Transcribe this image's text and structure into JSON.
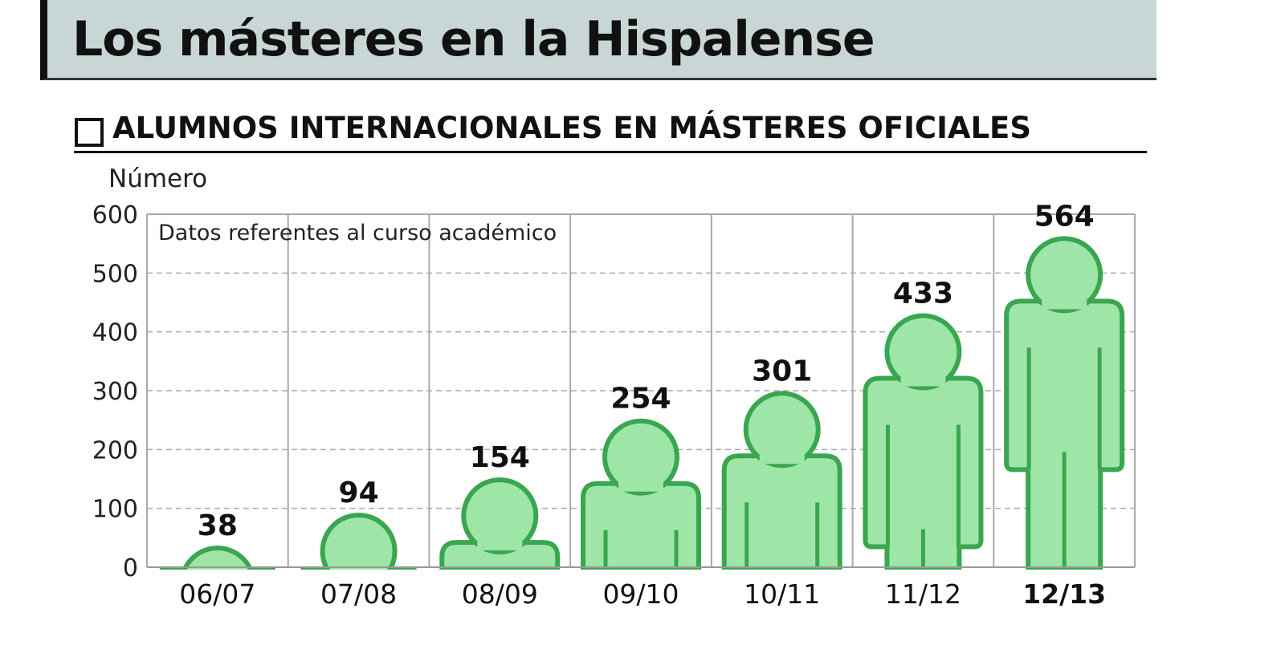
{
  "title": "Los másteres en la Hispalense",
  "subtitle": "ALUMNOS INTERNACIONALES EN MÁSTERES OFICIALES",
  "colors": {
    "fill": "#9de6a8",
    "stroke": "#3aa64f",
    "band": "#c8d6d6"
  },
  "chart_data": {
    "type": "bar",
    "title": "ALUMNOS INTERNACIONALES EN MÁSTERES OFICIALES",
    "ylabel": "Número",
    "note": "Datos referentes al curso académico",
    "categories": [
      "06/07",
      "07/08",
      "08/09",
      "09/10",
      "10/11",
      "11/12",
      "12/13"
    ],
    "values": [
      38,
      94,
      154,
      254,
      301,
      433,
      564
    ],
    "ylim": [
      0,
      600
    ],
    "yticks": [
      0,
      100,
      200,
      300,
      400,
      500,
      600
    ],
    "grid": true,
    "highlight_category": "12/13"
  }
}
